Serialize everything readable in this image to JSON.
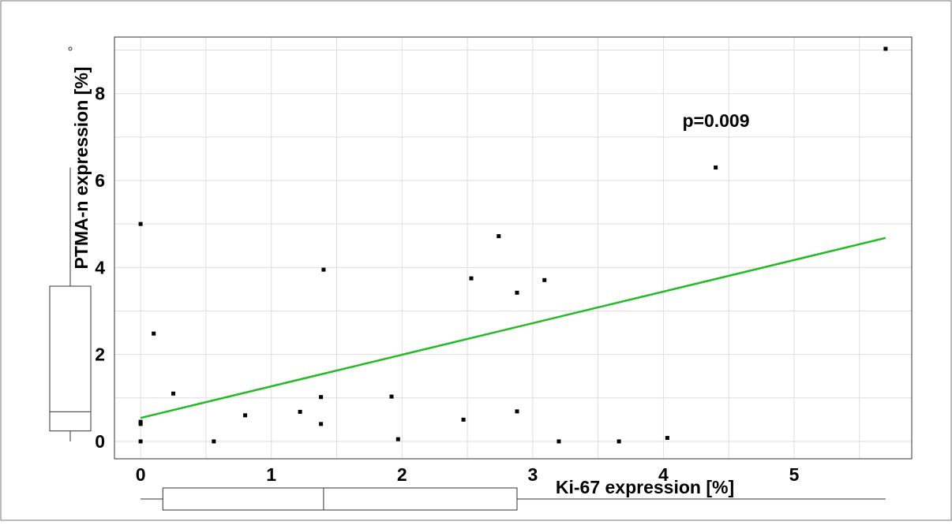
{
  "chart_data": {
    "type": "scatter",
    "title": "",
    "xlabel": "Ki-67 expression [%]",
    "ylabel": "PTMA-n expression [%]",
    "annotation": "p=0.009",
    "xlim": [
      -0.2,
      5.9
    ],
    "ylim": [
      -0.4,
      9.3
    ],
    "xticks": [
      0,
      1,
      2,
      3,
      4,
      5
    ],
    "yticks": [
      0,
      2,
      4,
      6,
      8
    ],
    "grid": true,
    "points": [
      {
        "x": 0,
        "y": 5.0
      },
      {
        "x": 0,
        "y": 0.45
      },
      {
        "x": 0,
        "y": 0.4
      },
      {
        "x": 0,
        "y": 0.0
      },
      {
        "x": 0.1,
        "y": 2.48
      },
      {
        "x": 0.25,
        "y": 1.1
      },
      {
        "x": 0.56,
        "y": 0.0
      },
      {
        "x": 0.8,
        "y": 0.6
      },
      {
        "x": 1.22,
        "y": 0.68
      },
      {
        "x": 1.38,
        "y": 1.02
      },
      {
        "x": 1.38,
        "y": 0.4
      },
      {
        "x": 1.4,
        "y": 3.95
      },
      {
        "x": 1.92,
        "y": 1.03
      },
      {
        "x": 1.97,
        "y": 0.05
      },
      {
        "x": 2.47,
        "y": 0.5
      },
      {
        "x": 2.53,
        "y": 3.75
      },
      {
        "x": 2.74,
        "y": 4.72
      },
      {
        "x": 2.88,
        "y": 3.42
      },
      {
        "x": 2.88,
        "y": 0.69
      },
      {
        "x": 3.09,
        "y": 3.71
      },
      {
        "x": 3.2,
        "y": 0.0
      },
      {
        "x": 3.66,
        "y": 0.0
      },
      {
        "x": 4.03,
        "y": 0.08
      },
      {
        "x": 4.4,
        "y": 6.3
      },
      {
        "x": 5.7,
        "y": 9.03
      }
    ],
    "fit_line": {
      "color": "#22bb22",
      "x": [
        0,
        5.7
      ],
      "y": [
        0.54,
        4.68
      ]
    },
    "marginal_boxplot_x": {
      "min": 0,
      "q1": 0.17,
      "median": 1.4,
      "q3": 2.88,
      "max": 5.7
    },
    "marginal_boxplot_y": {
      "min": 0,
      "q1": 0.24,
      "median": 0.68,
      "q3": 3.57,
      "max": 6.3,
      "outliers": [
        9.03
      ]
    }
  }
}
